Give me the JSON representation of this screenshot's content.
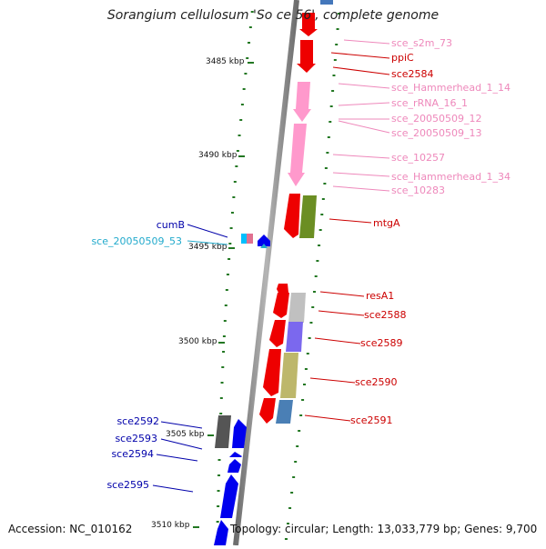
{
  "title": "Sorangium cellulosum 'So ce 56', complete genome",
  "footer": {
    "accession": "Accession: NC_010162",
    "summary": "Topology: circular; Length: 13,033,779 bp; Genes: 9,700"
  },
  "ruler": [
    {
      "label": "3485 kbp",
      "kbp": 3485
    },
    {
      "label": "3490 kbp",
      "kbp": 3490
    },
    {
      "label": "3495 kbp",
      "kbp": 3495
    },
    {
      "label": "3500 kbp",
      "kbp": 3500
    },
    {
      "label": "3505 kbp",
      "kbp": 3505
    },
    {
      "label": "3510 kbp",
      "kbp": 3510
    }
  ],
  "colors": {
    "backbone": "#8a8a8a",
    "cds": "#ee0000",
    "misc_rna": "#ff99cc",
    "label_red": "#cc0000",
    "label_pink": "#ee88bb",
    "label_blue": "#0000aa",
    "label_cyan": "#22aacc",
    "tick": "#227722"
  },
  "features": {
    "right": [
      {
        "name": "sce_s2m_73",
        "color": "label_pink"
      },
      {
        "name": "ppiC",
        "color": "label_red"
      },
      {
        "name": "sce2584",
        "color": "label_red"
      },
      {
        "name": "sce_Hammerhead_1_14",
        "color": "label_pink"
      },
      {
        "name": "sce_rRNA_16_1",
        "color": "label_pink"
      },
      {
        "name": "sce_20050509_12",
        "color": "label_pink"
      },
      {
        "name": "sce_20050509_13",
        "color": "label_pink"
      },
      {
        "name": "sce_10257",
        "color": "label_pink"
      },
      {
        "name": "sce_Hammerhead_1_34",
        "color": "label_pink"
      },
      {
        "name": "sce_10283",
        "color": "label_pink"
      },
      {
        "name": "mtgA",
        "color": "label_red"
      },
      {
        "name": "resA1",
        "color": "label_red"
      },
      {
        "name": "sce2588",
        "color": "label_red"
      },
      {
        "name": "sce2589",
        "color": "label_red"
      },
      {
        "name": "sce2590",
        "color": "label_red"
      },
      {
        "name": "sce2591",
        "color": "label_red"
      }
    ],
    "left": [
      {
        "name": "cumB",
        "color": "label_blue"
      },
      {
        "name": "sce_20050509_53",
        "color": "label_cyan"
      },
      {
        "name": "sce2592",
        "color": "label_blue"
      },
      {
        "name": "sce2593",
        "color": "label_blue"
      },
      {
        "name": "sce2594",
        "color": "label_blue"
      },
      {
        "name": "sce2595",
        "color": "label_blue"
      }
    ]
  }
}
